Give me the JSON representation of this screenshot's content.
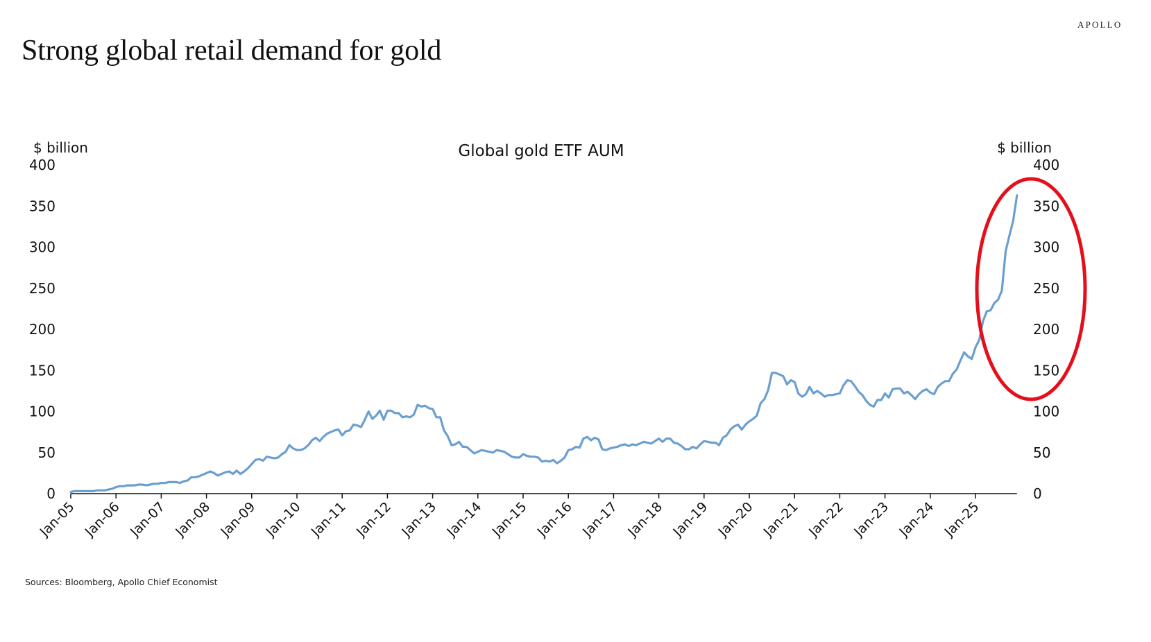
{
  "brand": "APOLLO",
  "headline": "Strong global retail demand for gold",
  "footer": {
    "source_note": "Sources: Bloomberg, Apollo Chief Economist"
  },
  "colors": {
    "line": "#6b9fd0",
    "highlight_ellipse": "#e3101b",
    "text": "#111111"
  },
  "chart_data": {
    "type": "line",
    "title": "Global gold ETF AUM",
    "ylabel_left": "$ billion",
    "ylabel_right": "$ billion",
    "ylim": [
      0,
      400
    ],
    "yticks": [
      0,
      50,
      100,
      150,
      200,
      250,
      300,
      350,
      400
    ],
    "x_start": "Jan-05",
    "x_end": "Dec-25",
    "frequency": "monthly",
    "x_tick_labels": [
      "Jan-05",
      "Jan-06",
      "Jan-07",
      "Jan-08",
      "Jan-09",
      "Jan-10",
      "Jan-11",
      "Jan-12",
      "Jan-13",
      "Jan-14",
      "Jan-15",
      "Jan-16",
      "Jan-17",
      "Jan-18",
      "Jan-19",
      "Jan-20",
      "Jan-21",
      "Jan-22",
      "Jan-23",
      "Jan-24",
      "Jan-25"
    ],
    "annotation": "red ellipse highlighting 2025 surge",
    "series": [
      {
        "name": "Global gold ETF AUM",
        "values": [
          2,
          3,
          3,
          3,
          3,
          3,
          3,
          4,
          4,
          4,
          5,
          6,
          8,
          9,
          9,
          10,
          10,
          10,
          11,
          11,
          10,
          11,
          12,
          12,
          13,
          13,
          14,
          14,
          14,
          13,
          15,
          16,
          20,
          20,
          21,
          23,
          25,
          27,
          25,
          22,
          24,
          26,
          27,
          24,
          28,
          24,
          27,
          31,
          36,
          41,
          42,
          40,
          45,
          44,
          43,
          44,
          48,
          51,
          59,
          55,
          53,
          53,
          55,
          59,
          65,
          68,
          64,
          69,
          73,
          75,
          77,
          78,
          71,
          76,
          77,
          84,
          83,
          81,
          90,
          100,
          91,
          95,
          101,
          90,
          101,
          101,
          98,
          98,
          93,
          94,
          93,
          96,
          108,
          106,
          107,
          104,
          103,
          93,
          93,
          77,
          70,
          59,
          60,
          63,
          57,
          57,
          53,
          49,
          51,
          53,
          52,
          51,
          50,
          53,
          52,
          51,
          48,
          45,
          44,
          44,
          48,
          46,
          45,
          45,
          44,
          39,
          40,
          39,
          41,
          37,
          40,
          44,
          53,
          54,
          57,
          56,
          67,
          69,
          65,
          68,
          66,
          54,
          53,
          55,
          56,
          57,
          59,
          60,
          58,
          60,
          59,
          61,
          63,
          62,
          61,
          64,
          67,
          63,
          67,
          67,
          62,
          61,
          58,
          54,
          54,
          57,
          55,
          60,
          64,
          63,
          62,
          62,
          59,
          68,
          71,
          78,
          82,
          84,
          78,
          84,
          88,
          91,
          95,
          110,
          115,
          126,
          147,
          147,
          145,
          143,
          133,
          138,
          136,
          122,
          118,
          121,
          130,
          122,
          125,
          122,
          118,
          120,
          120,
          121,
          122,
          132,
          138,
          137,
          131,
          124,
          120,
          113,
          108,
          106,
          114,
          114,
          122,
          117,
          127,
          128,
          128,
          122,
          124,
          120,
          115,
          121,
          125,
          127,
          123,
          121,
          130,
          134,
          137,
          137,
          146,
          151,
          162,
          172,
          167,
          164,
          178,
          187,
          210,
          222,
          223,
          232,
          236,
          247,
          295,
          314,
          332,
          363
        ]
      }
    ]
  }
}
